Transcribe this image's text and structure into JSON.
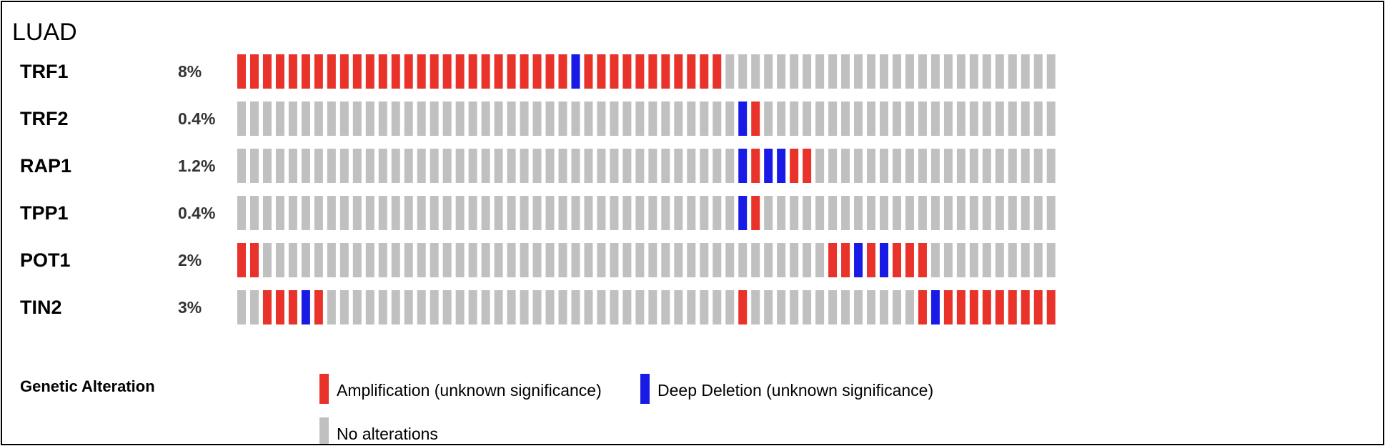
{
  "title": "LUAD",
  "colors": {
    "amplification": "#e8322a",
    "deep_deletion": "#1a1ae6",
    "none": "#c0c0c0"
  },
  "legend": {
    "title": "Genetic Alteration",
    "items": [
      {
        "key": "amplification",
        "label": "Amplification (unknown significance)"
      },
      {
        "key": "deep_deletion",
        "label": "Deep Deletion (unknown significance)"
      },
      {
        "key": "none",
        "label": "No alterations"
      }
    ]
  },
  "chart_data": {
    "type": "heatmap",
    "title": "LUAD",
    "codes": {
      "A": "amplification",
      "D": "deep_deletion",
      "N": "none"
    },
    "samples_shown": 64,
    "rows": [
      {
        "gene": "TRF1",
        "percent": "8%",
        "cells": "AAAAAAAAAAAAAAAAAAAAAAAAAADAAAAAAAAAAANNNNNNNNNNNNNNNNNNNNNNNNNN"
      },
      {
        "gene": "TRF2",
        "percent": "0.4%",
        "cells": "NNNNNNNNNNNNNNNNNNNNNNNNNNNNNNNNNNNNNNNDANNNNNNNNNNNNNNNNNNNNNNN"
      },
      {
        "gene": "RAP1",
        "percent": "1.2%",
        "cells": "NNNNNNNNNNNNNNNNNNNNNNNNNNNNNNNNNNNNNNNDADDAANNNNNNNNNNNNNNNNNNN"
      },
      {
        "gene": "TPP1",
        "percent": "0.4%",
        "cells": "NNNNNNNNNNNNNNNNNNNNNNNNNNNNNNNNNNNNNNNDANNNNNNNNNNNNNNNNNNNNNNN"
      },
      {
        "gene": "POT1",
        "percent": "2%",
        "cells": "AANNNNNNNNNNNNNNNNNNNNNNNNNNNNNNNNNNNNNNNNNNNNAADADAAANNNNNNNNNN"
      },
      {
        "gene": "TIN2",
        "percent": "3%",
        "cells": "NNAAADANNNNNNNNNNNNNNNNNNNNNNNNNNNNNNNNANNNNNNNNNNNNNADAAAAAAAAA"
      }
    ]
  }
}
